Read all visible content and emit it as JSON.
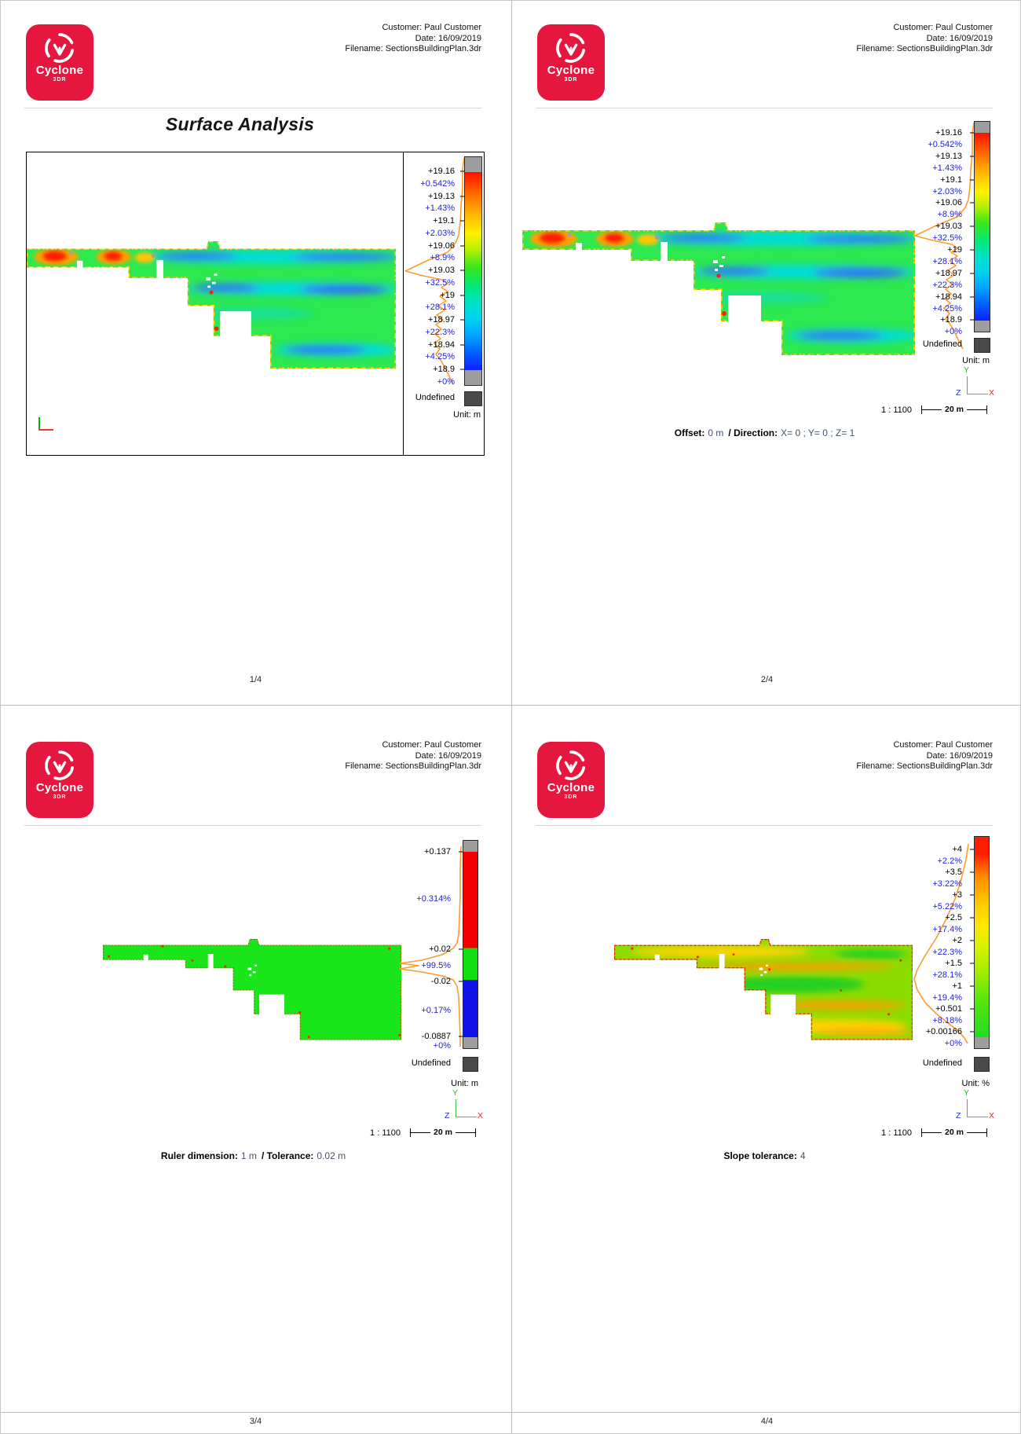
{
  "branding": {
    "logo_title": "Cyclone",
    "logo_subtitle": "3DR"
  },
  "header": {
    "customer": "Customer: Paul Customer",
    "date": "Date: 16/09/2019",
    "filename": "Filename: SectionsBuildingPlan.3dr"
  },
  "axes": {
    "x": "X",
    "y": "Y",
    "z": "Z"
  },
  "scale": {
    "ratio": "1 : 1100",
    "length": "20 m"
  },
  "colors": {
    "logo_red": "#e5173f",
    "label_blue": "#2323d6",
    "histogram_orange": "#ff9a2e",
    "undefined_gray": "#4a4a4a",
    "bar_cap_gray": "#9e9e9e"
  },
  "pages": [
    {
      "title": "Surface Analysis",
      "footer": "1/4",
      "legend": {
        "unit": "Unit: m",
        "undefined_label": "Undefined",
        "rows": [
          {
            "text": "+19.16",
            "kind": "value"
          },
          {
            "text": "+0.542%",
            "kind": "pct"
          },
          {
            "text": "+19.13",
            "kind": "value"
          },
          {
            "text": "+1.43%",
            "kind": "pct"
          },
          {
            "text": "+19.1",
            "kind": "value"
          },
          {
            "text": "+2.03%",
            "kind": "pct"
          },
          {
            "text": "+19.06",
            "kind": "value"
          },
          {
            "text": "+8.9%",
            "kind": "pct"
          },
          {
            "text": "+19.03",
            "kind": "value"
          },
          {
            "text": "+32.5%",
            "kind": "pct"
          },
          {
            "text": "+19",
            "kind": "value"
          },
          {
            "text": "+28.1%",
            "kind": "pct"
          },
          {
            "text": "+18.97",
            "kind": "value"
          },
          {
            "text": "+22.3%",
            "kind": "pct"
          },
          {
            "text": "+18.94",
            "kind": "value"
          },
          {
            "text": "+4.25%",
            "kind": "pct"
          },
          {
            "text": "+18.9",
            "kind": "value"
          },
          {
            "text": "+0%",
            "kind": "pct"
          }
        ]
      }
    },
    {
      "footer": "2/4",
      "caption": [
        {
          "label": "Offset:",
          "value": "0 m"
        },
        {
          "label": "/ Direction:",
          "value": "X= 0 ; Y= 0 ; Z= 1"
        }
      ],
      "legend": {
        "unit": "Unit: m",
        "undefined_label": "Undefined",
        "rows": [
          {
            "text": "+19.16",
            "kind": "value"
          },
          {
            "text": "+0.542%",
            "kind": "pct"
          },
          {
            "text": "+19.13",
            "kind": "value"
          },
          {
            "text": "+1.43%",
            "kind": "pct"
          },
          {
            "text": "+19.1",
            "kind": "value"
          },
          {
            "text": "+2.03%",
            "kind": "pct"
          },
          {
            "text": "+19.06",
            "kind": "value"
          },
          {
            "text": "+8.9%",
            "kind": "pct"
          },
          {
            "text": "+19.03",
            "kind": "value"
          },
          {
            "text": "+32.5%",
            "kind": "pct"
          },
          {
            "text": "+19",
            "kind": "value"
          },
          {
            "text": "+28.1%",
            "kind": "pct"
          },
          {
            "text": "+18.97",
            "kind": "value"
          },
          {
            "text": "+22.3%",
            "kind": "pct"
          },
          {
            "text": "+18.94",
            "kind": "value"
          },
          {
            "text": "+4.25%",
            "kind": "pct"
          },
          {
            "text": "+18.9",
            "kind": "value"
          },
          {
            "text": "+0%",
            "kind": "pct"
          }
        ]
      }
    },
    {
      "footer": "3/4",
      "caption": [
        {
          "label": "Ruler dimension:",
          "value": "1 m"
        },
        {
          "label": "/ Tolerance:",
          "value": "0.02 m"
        }
      ],
      "legend": {
        "unit": "Unit: m",
        "undefined_label": "Undefined",
        "rows": [
          {
            "text": "+0.137",
            "kind": "value"
          },
          {
            "text": "+0.314%",
            "kind": "pct"
          },
          {
            "text": "+0.02",
            "kind": "value"
          },
          {
            "text": "+99.5%",
            "kind": "pct"
          },
          {
            "text": "-0.02",
            "kind": "value"
          },
          {
            "text": "+0.17%",
            "kind": "pct"
          },
          {
            "text": "-0.0887",
            "kind": "value"
          },
          {
            "text": "+0%",
            "kind": "pct"
          }
        ]
      }
    },
    {
      "footer": "4/4",
      "caption": [
        {
          "label": "Slope tolerance:",
          "value": "4"
        }
      ],
      "legend": {
        "unit": "Unit: %",
        "undefined_label": "Undefined",
        "rows": [
          {
            "text": "+4",
            "kind": "value"
          },
          {
            "text": "+2.2%",
            "kind": "pct"
          },
          {
            "text": "+3.5",
            "kind": "value"
          },
          {
            "text": "+3.22%",
            "kind": "pct"
          },
          {
            "text": "+3",
            "kind": "value"
          },
          {
            "text": "+5.22%",
            "kind": "pct"
          },
          {
            "text": "+2.5",
            "kind": "value"
          },
          {
            "text": "+17.4%",
            "kind": "pct"
          },
          {
            "text": "+2",
            "kind": "value"
          },
          {
            "text": "+22.3%",
            "kind": "pct"
          },
          {
            "text": "+1.5",
            "kind": "value"
          },
          {
            "text": "+28.1%",
            "kind": "pct"
          },
          {
            "text": "+1",
            "kind": "value"
          },
          {
            "text": "+19.4%",
            "kind": "pct"
          },
          {
            "text": "+0.501",
            "kind": "value"
          },
          {
            "text": "+8.18%",
            "kind": "pct"
          },
          {
            "text": "+0.00166",
            "kind": "value"
          },
          {
            "text": "+0%",
            "kind": "pct"
          }
        ]
      }
    }
  ]
}
